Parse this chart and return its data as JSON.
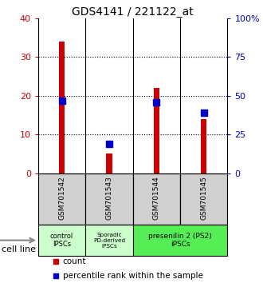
{
  "title": "GDS4141 / 221122_at",
  "samples": [
    "GSM701542",
    "GSM701543",
    "GSM701544",
    "GSM701545"
  ],
  "count_values": [
    34,
    5,
    22,
    14
  ],
  "percentile_values": [
    47,
    19,
    46,
    39
  ],
  "ylim_left": [
    0,
    40
  ],
  "ylim_right": [
    0,
    100
  ],
  "yticks_left": [
    0,
    10,
    20,
    30,
    40
  ],
  "yticks_right": [
    0,
    25,
    50,
    75,
    100
  ],
  "ytick_labels_right": [
    "0",
    "25",
    "50",
    "75",
    "100%"
  ],
  "bar_color": "#cc0000",
  "pct_color": "#0000cc",
  "cell_line_label": "cell line",
  "legend_count_label": "count",
  "legend_pct_label": "percentile rank within the sample",
  "plot_bg": "#ffffff",
  "sample_bg": "#d0d0d0",
  "group1_color": "#ccffcc",
  "group2_color": "#55ee55",
  "bar_width": 0.12,
  "pct_marker_size": 28
}
